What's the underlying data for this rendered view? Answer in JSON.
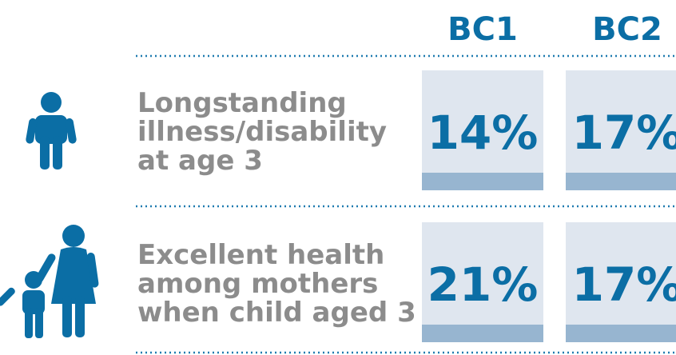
{
  "columns": [
    "BC1",
    "BC2"
  ],
  "rows": [
    {
      "label": [
        "Longstanding",
        "illness/disability",
        "at age 3"
      ],
      "values": [
        "14%",
        "17%"
      ]
    },
    {
      "label": [
        "Excellent health",
        "among mothers",
        "when child aged 3"
      ],
      "values": [
        "21%",
        "17%"
      ]
    }
  ]
}
